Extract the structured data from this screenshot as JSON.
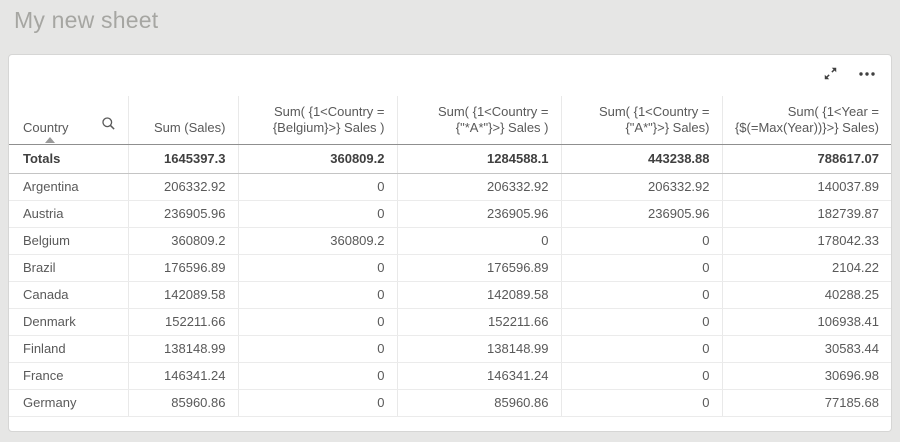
{
  "page": {
    "title": "My new sheet"
  },
  "toolbar": {
    "fullscreen_icon": "diagonal-expand-arrows",
    "more_options_icon": "horizontal-ellipsis"
  },
  "table": {
    "header_icons": {
      "country_search": "magnifier",
      "country_sort": "triangle-up-ascending"
    },
    "columns": [
      {
        "label": "Country",
        "align": "left",
        "sorted": "ascending",
        "has_search": true
      },
      {
        "label": "Sum (Sales)",
        "align": "right"
      },
      {
        "label": "Sum( {1<Country = {Belgium}>} Sales )",
        "align": "right"
      },
      {
        "label": "Sum( {1<Country = {\"*A*\"}>} Sales )",
        "align": "right"
      },
      {
        "label": "Sum( {1<Country = {\"A*\"}>} Sales)",
        "align": "right"
      },
      {
        "label": "Sum( {1<Year = {$(=Max(Year))}>} Sales)",
        "align": "right"
      }
    ],
    "totals": [
      "Totals",
      "1645397.3",
      "360809.2",
      "1284588.1",
      "443238.88",
      "788617.07"
    ],
    "rows": [
      [
        "Argentina",
        "206332.92",
        "0",
        "206332.92",
        "206332.92",
        "140037.89"
      ],
      [
        "Austria",
        "236905.96",
        "0",
        "236905.96",
        "236905.96",
        "182739.87"
      ],
      [
        "Belgium",
        "360809.2",
        "360809.2",
        "0",
        "0",
        "178042.33"
      ],
      [
        "Brazil",
        "176596.89",
        "0",
        "176596.89",
        "0",
        "2104.22"
      ],
      [
        "Canada",
        "142089.58",
        "0",
        "142089.58",
        "0",
        "40288.25"
      ],
      [
        "Denmark",
        "152211.66",
        "0",
        "152211.66",
        "0",
        "106938.41"
      ],
      [
        "Finland",
        "138148.99",
        "0",
        "138148.99",
        "0",
        "30583.44"
      ],
      [
        "France",
        "146341.24",
        "0",
        "146341.24",
        "0",
        "30696.98"
      ],
      [
        "Germany",
        "85960.86",
        "0",
        "85960.86",
        "0",
        "77185.68"
      ]
    ]
  },
  "colors": {
    "page_bg": "#e6e6e5",
    "card_bg": "#ffffff",
    "title_text": "#a6a6a2",
    "cell_text": "#595959",
    "totals_text": "#404040",
    "header_border": "#8f8f8f",
    "icon": "#404040"
  }
}
